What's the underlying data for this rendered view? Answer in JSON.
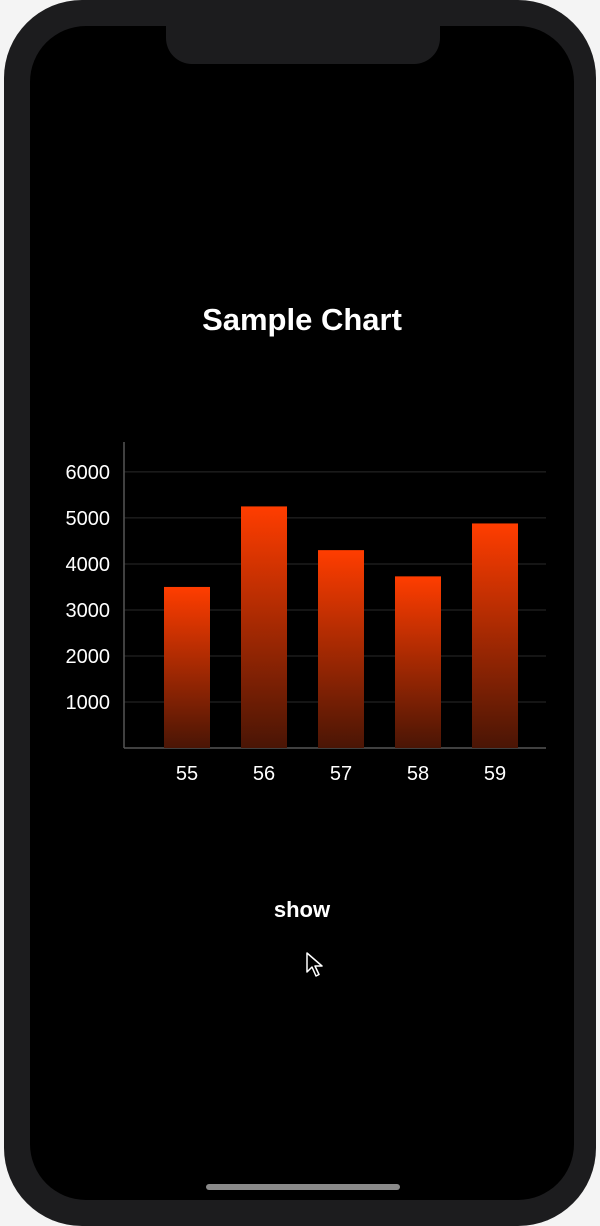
{
  "screen": {
    "title": "Sample Chart",
    "button_label": "show"
  },
  "colors": {
    "bar_top": "#ff3d00",
    "bar_bottom": "#4a1505",
    "grid": "#2a2a2a",
    "axis": "#555555"
  },
  "chart_data": {
    "type": "bar",
    "categories": [
      "55",
      "56",
      "57",
      "58",
      "59"
    ],
    "values": [
      3500,
      5250,
      4300,
      3730,
      4880
    ],
    "title": "Sample Chart",
    "xlabel": "",
    "ylabel": "",
    "ylim": [
      0,
      6650
    ],
    "yticks": [
      1000,
      2000,
      3000,
      4000,
      5000,
      6000
    ],
    "grid": true
  }
}
